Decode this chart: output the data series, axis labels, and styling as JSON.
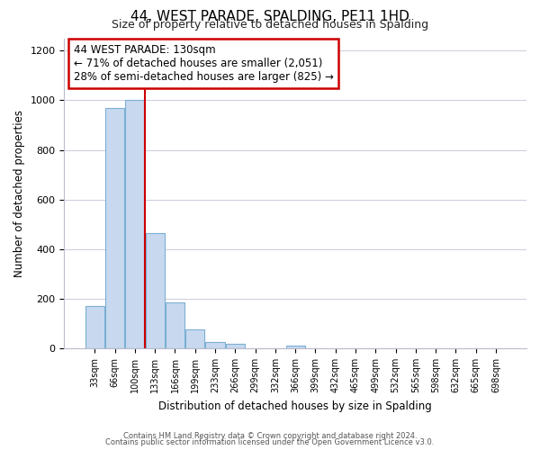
{
  "title": "44, WEST PARADE, SPALDING, PE11 1HD",
  "subtitle": "Size of property relative to detached houses in Spalding",
  "xlabel": "Distribution of detached houses by size in Spalding",
  "ylabel": "Number of detached properties",
  "bar_labels": [
    "33sqm",
    "66sqm",
    "100sqm",
    "133sqm",
    "166sqm",
    "199sqm",
    "233sqm",
    "266sqm",
    "299sqm",
    "332sqm",
    "366sqm",
    "399sqm",
    "432sqm",
    "465sqm",
    "499sqm",
    "532sqm",
    "565sqm",
    "598sqm",
    "632sqm",
    "665sqm",
    "698sqm"
  ],
  "bar_values": [
    170,
    970,
    1000,
    465,
    185,
    75,
    25,
    17,
    0,
    0,
    10,
    0,
    0,
    0,
    0,
    0,
    0,
    0,
    0,
    0,
    0
  ],
  "bar_color": "#c8d9ef",
  "bar_edge_color": "#7bafd4",
  "ylim": [
    0,
    1250
  ],
  "yticks": [
    0,
    200,
    400,
    600,
    800,
    1000,
    1200
  ],
  "property_line_color": "#cc0000",
  "annotation_title": "44 WEST PARADE: 130sqm",
  "annotation_line1": "← 71% of detached houses are smaller (2,051)",
  "annotation_line2": "28% of semi-detached houses are larger (825) →",
  "annotation_box_color": "#ffffff",
  "annotation_box_edge": "#cc0000",
  "footer_line1": "Contains HM Land Registry data © Crown copyright and database right 2024.",
  "footer_line2": "Contains public sector information licensed under the Open Government Licence v3.0.",
  "background_color": "#ffffff",
  "grid_color": "#ccccdd"
}
